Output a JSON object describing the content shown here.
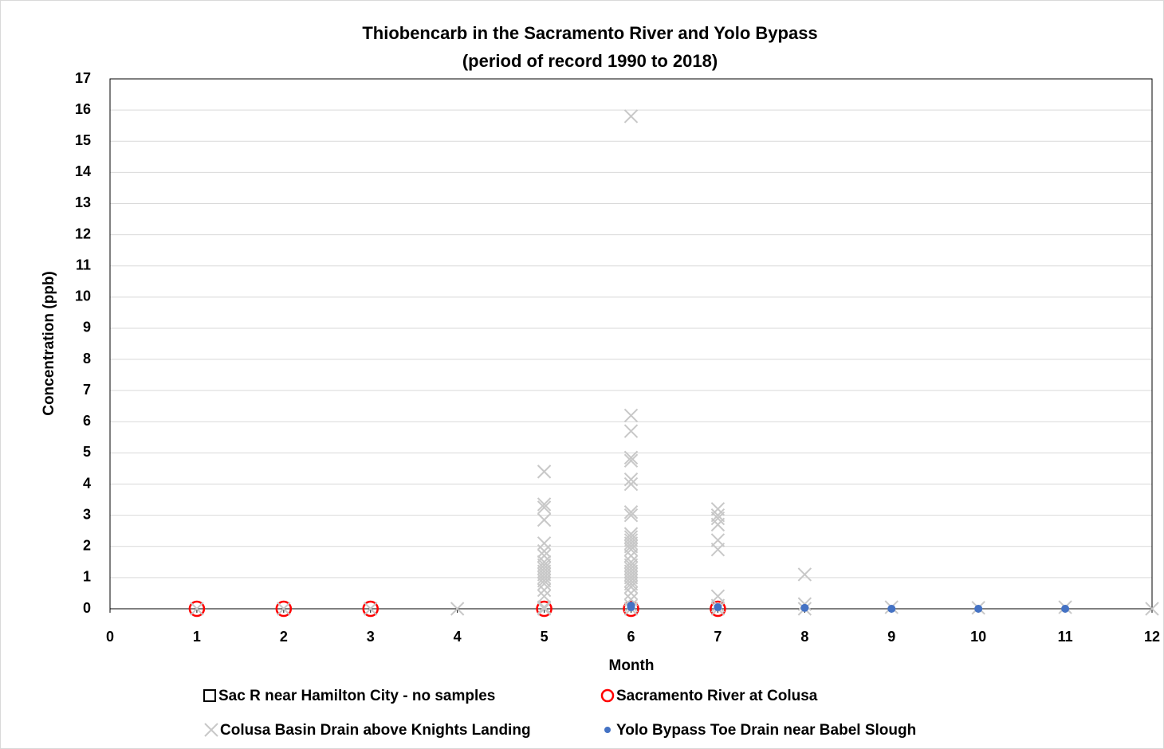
{
  "chart_data": {
    "type": "scatter",
    "title": "Thiobencarb in the Sacramento River and Yolo Bypass",
    "subtitle": "(period of record 1990 to 2018)",
    "x_label": "Month",
    "y_label": "Concentration (ppb)",
    "xlim": [
      0,
      12
    ],
    "ylim": [
      0,
      17
    ],
    "xticks": [
      0,
      1,
      2,
      3,
      4,
      5,
      6,
      7,
      8,
      9,
      10,
      11,
      12
    ],
    "yticks": [
      0,
      1,
      2,
      3,
      4,
      5,
      6,
      7,
      8,
      9,
      10,
      11,
      12,
      13,
      14,
      15,
      16,
      17
    ],
    "grid": true,
    "legend": "bottom",
    "series": [
      {
        "name": "Sac R near Hamilton City - no samples",
        "color": "#000000",
        "marker": "square",
        "x": [],
        "values": []
      },
      {
        "name": "Sacramento River at Colusa",
        "color": "#ff0000",
        "marker": "circle",
        "x": [
          1,
          2,
          3,
          5,
          6,
          7
        ],
        "values": [
          0,
          0,
          0,
          0,
          0,
          0
        ]
      },
      {
        "name": "Colusa Basin Drain above Knights Landing",
        "color": "#c8c8c8",
        "marker": "x",
        "x": [
          1,
          2,
          3,
          4,
          5,
          5,
          5,
          5,
          5,
          5,
          5,
          5,
          5,
          5,
          5,
          5,
          5,
          5,
          5,
          5,
          5,
          5,
          5,
          6,
          6,
          6,
          6,
          6,
          6,
          6,
          6,
          6,
          6,
          6,
          6,
          6,
          6,
          6,
          6,
          6,
          6,
          6,
          6,
          6,
          6,
          6,
          6,
          6,
          6,
          6,
          6,
          6,
          7,
          7,
          7,
          7,
          7,
          7,
          7,
          7,
          7,
          8,
          8,
          8,
          9,
          10,
          11,
          12
        ],
        "values": [
          0,
          0,
          0,
          0,
          4.4,
          3.35,
          3.25,
          2.85,
          2.1,
          1.85,
          1.7,
          1.5,
          1.4,
          1.3,
          1.2,
          1.1,
          1.0,
          0.9,
          0.8,
          0.6,
          0.4,
          0.05,
          0,
          15.8,
          6.2,
          5.7,
          4.85,
          4.75,
          4.15,
          4.0,
          3.1,
          3.0,
          2.4,
          2.3,
          2.2,
          2.1,
          2.0,
          1.9,
          1.7,
          1.5,
          1.4,
          1.3,
          1.2,
          1.1,
          1.0,
          0.9,
          0.8,
          0.7,
          0.5,
          0.3,
          0.1,
          0,
          3.2,
          3.0,
          2.9,
          2.7,
          2.2,
          1.9,
          0.4,
          0.1,
          0,
          1.1,
          0.15,
          0,
          0.05,
          0.03,
          0.05,
          0
        ]
      },
      {
        "name": "Yolo Bypass Toe Drain near Babel Slough",
        "color": "#4472c4",
        "marker": "dot",
        "x": [
          6,
          6,
          7,
          8,
          9,
          10,
          11
        ],
        "values": [
          0.1,
          0.05,
          0.05,
          0.03,
          0,
          0,
          0
        ]
      }
    ]
  }
}
